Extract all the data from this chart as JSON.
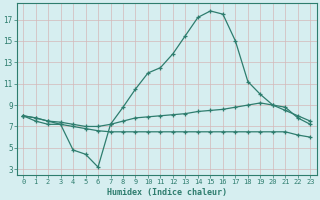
{
  "xlabel": "Humidex (Indice chaleur)",
  "background_color": "#d6eef0",
  "grid_color": "#c8dfe0",
  "line_color": "#2e7d6e",
  "xlim": [
    -0.5,
    23.5
  ],
  "ylim": [
    2.5,
    18.5
  ],
  "xticks": [
    0,
    1,
    2,
    3,
    4,
    5,
    6,
    7,
    8,
    9,
    10,
    11,
    12,
    13,
    14,
    15,
    16,
    17,
    18,
    19,
    20,
    21,
    22,
    23
  ],
  "yticks": [
    3,
    5,
    7,
    9,
    11,
    13,
    15,
    17
  ],
  "series": [
    [
      8.0,
      7.5,
      7.2,
      7.2,
      4.8,
      4.4,
      3.2,
      7.2,
      8.8,
      10.5,
      12.0,
      12.5,
      13.8,
      15.5,
      17.2,
      17.8,
      17.5,
      15.0,
      11.2,
      10.0,
      9.0,
      8.8,
      7.8,
      7.2
    ],
    [
      8.0,
      7.8,
      7.5,
      7.4,
      7.2,
      7.0,
      7.0,
      7.2,
      7.5,
      7.8,
      7.9,
      8.0,
      8.1,
      8.2,
      8.4,
      8.5,
      8.6,
      8.8,
      9.0,
      9.2,
      9.0,
      8.5,
      8.0,
      7.5
    ],
    [
      8.0,
      7.8,
      7.5,
      7.2,
      7.0,
      6.8,
      6.6,
      6.5,
      6.5,
      6.5,
      6.5,
      6.5,
      6.5,
      6.5,
      6.5,
      6.5,
      6.5,
      6.5,
      6.5,
      6.5,
      6.5,
      6.5,
      6.2,
      6.0
    ]
  ],
  "figsize": [
    3.2,
    2.0
  ],
  "dpi": 100
}
